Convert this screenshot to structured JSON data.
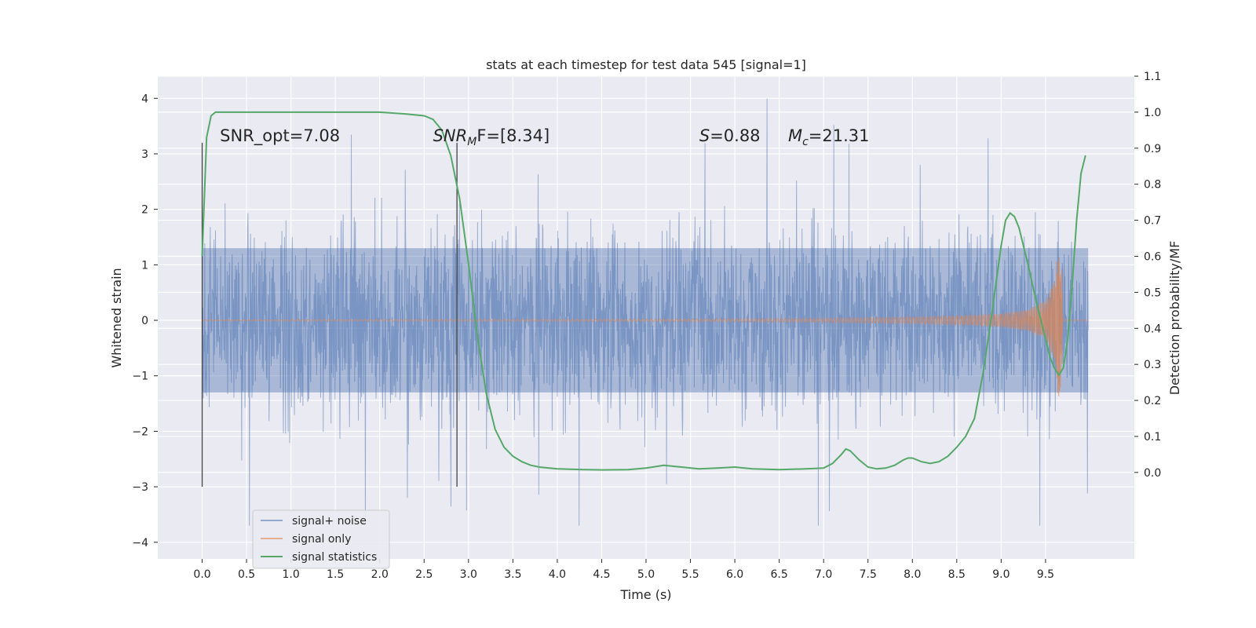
{
  "chart_data": {
    "type": "line",
    "title": "stats at each timestep for test data 545 [signal=1]",
    "xlabel": "Time (s)",
    "ylabel": "Whitened strain",
    "y2label": "Detection probability/MF",
    "xlim": [
      -0.5,
      10.5
    ],
    "ylim": [
      -4.3,
      4.4
    ],
    "y2lim": [
      -0.24,
      1.1
    ],
    "xticks": [
      0.0,
      0.5,
      1.0,
      1.5,
      2.0,
      2.5,
      3.0,
      3.5,
      4.0,
      4.5,
      5.0,
      5.5,
      6.0,
      6.5,
      7.0,
      7.5,
      8.0,
      8.5,
      9.0,
      9.5
    ],
    "xtick_labels": [
      "0.0",
      "0.5",
      "1.0",
      "1.5",
      "2.0",
      "2.5",
      "3.0",
      "3.5",
      "4.0",
      "4.5",
      "5.0",
      "5.5",
      "6.0",
      "6.5",
      "7.0",
      "7.5",
      "8.0",
      "8.5",
      "9.0",
      "9.5"
    ],
    "yticks": [
      -4,
      -3,
      -2,
      -1,
      0,
      1,
      2,
      3,
      4
    ],
    "ytick_labels": [
      "−4",
      "−3",
      "−2",
      "−1",
      "0",
      "1",
      "2",
      "3",
      "4"
    ],
    "y2ticks": [
      0.0,
      0.1,
      0.2,
      0.3,
      0.4,
      0.5,
      0.6,
      0.7,
      0.8,
      0.9,
      1.0,
      1.1
    ],
    "y2tick_labels": [
      "0.0",
      "0.1",
      "0.2",
      "0.3",
      "0.4",
      "0.5",
      "0.6",
      "0.7",
      "0.8",
      "0.9",
      "1.0",
      "1.1"
    ],
    "grid": true,
    "legend_position": "bottom-left",
    "noise": {
      "name": "signal+ noise",
      "color": "#4c72b0",
      "x_range": [
        0,
        9.98
      ],
      "core_amplitude": 1.3,
      "peak_amplitude": 4.0
    },
    "signal_only": {
      "name": "signal only",
      "color": "#dd8452",
      "x": [
        0.0,
        2.0,
        4.0,
        6.0,
        7.0,
        8.0,
        8.5,
        9.0,
        9.3,
        9.5,
        9.6,
        9.65,
        9.68,
        9.7
      ],
      "amplitude": [
        0.01,
        0.015,
        0.02,
        0.03,
        0.04,
        0.06,
        0.08,
        0.12,
        0.2,
        0.35,
        0.7,
        1.5,
        1.0,
        0.0
      ]
    },
    "signal_statistics": {
      "name": "signal statistics",
      "color": "#55a868",
      "x": [
        0.0,
        0.05,
        0.1,
        0.15,
        0.2,
        0.3,
        0.5,
        1.0,
        1.5,
        2.0,
        2.3,
        2.5,
        2.6,
        2.7,
        2.8,
        2.9,
        3.0,
        3.1,
        3.2,
        3.3,
        3.4,
        3.5,
        3.6,
        3.7,
        3.8,
        4.0,
        4.3,
        4.5,
        4.8,
        5.0,
        5.2,
        5.4,
        5.6,
        5.8,
        6.0,
        6.2,
        6.5,
        6.8,
        7.0,
        7.1,
        7.2,
        7.25,
        7.3,
        7.4,
        7.5,
        7.6,
        7.7,
        7.8,
        7.9,
        7.95,
        8.0,
        8.1,
        8.2,
        8.3,
        8.4,
        8.5,
        8.6,
        8.7,
        8.8,
        8.9,
        9.0,
        9.05,
        9.1,
        9.15,
        9.2,
        9.3,
        9.4,
        9.5,
        9.55,
        9.6,
        9.65,
        9.7,
        9.75,
        9.8,
        9.85,
        9.9,
        9.95
      ],
      "values": [
        0.6,
        0.93,
        0.99,
        1.0,
        1.0,
        1.0,
        1.0,
        1.0,
        1.0,
        1.0,
        0.995,
        0.99,
        0.98,
        0.95,
        0.88,
        0.76,
        0.58,
        0.38,
        0.22,
        0.12,
        0.07,
        0.045,
        0.03,
        0.02,
        0.015,
        0.01,
        0.008,
        0.007,
        0.008,
        0.012,
        0.02,
        0.015,
        0.01,
        0.012,
        0.015,
        0.01,
        0.008,
        0.01,
        0.012,
        0.025,
        0.05,
        0.065,
        0.06,
        0.035,
        0.015,
        0.01,
        0.012,
        0.02,
        0.035,
        0.04,
        0.04,
        0.03,
        0.025,
        0.03,
        0.045,
        0.07,
        0.1,
        0.15,
        0.28,
        0.45,
        0.63,
        0.7,
        0.72,
        0.71,
        0.68,
        0.58,
        0.47,
        0.37,
        0.32,
        0.29,
        0.27,
        0.29,
        0.37,
        0.52,
        0.7,
        0.83,
        0.88
      ]
    },
    "vlines": [
      {
        "x": 0.0,
        "y": [
          -3.0,
          3.2
        ]
      },
      {
        "x": 2.87,
        "y": [
          -3.0,
          3.2
        ]
      }
    ],
    "annotations": [
      {
        "id": "snr-opt",
        "text": "SNR_opt=7.08",
        "x": 0.2,
        "y": 3.2
      },
      {
        "id": "snr-mf",
        "text": "SNR",
        "sub": "M",
        "rest": "F=[8.34]",
        "x": 2.6,
        "y": 3.2,
        "italic_prefix": true
      },
      {
        "id": "s-value",
        "text": "S",
        "rest": "=0.88",
        "x": 5.6,
        "y": 3.2,
        "italic_prefix": true
      },
      {
        "id": "mc-value",
        "text": "M",
        "sub": "c",
        "rest": "=21.31",
        "x": 6.6,
        "y": 3.2,
        "italic_prefix": true
      }
    ],
    "legend": [
      "signal+ noise",
      "signal only",
      "signal statistics"
    ]
  }
}
